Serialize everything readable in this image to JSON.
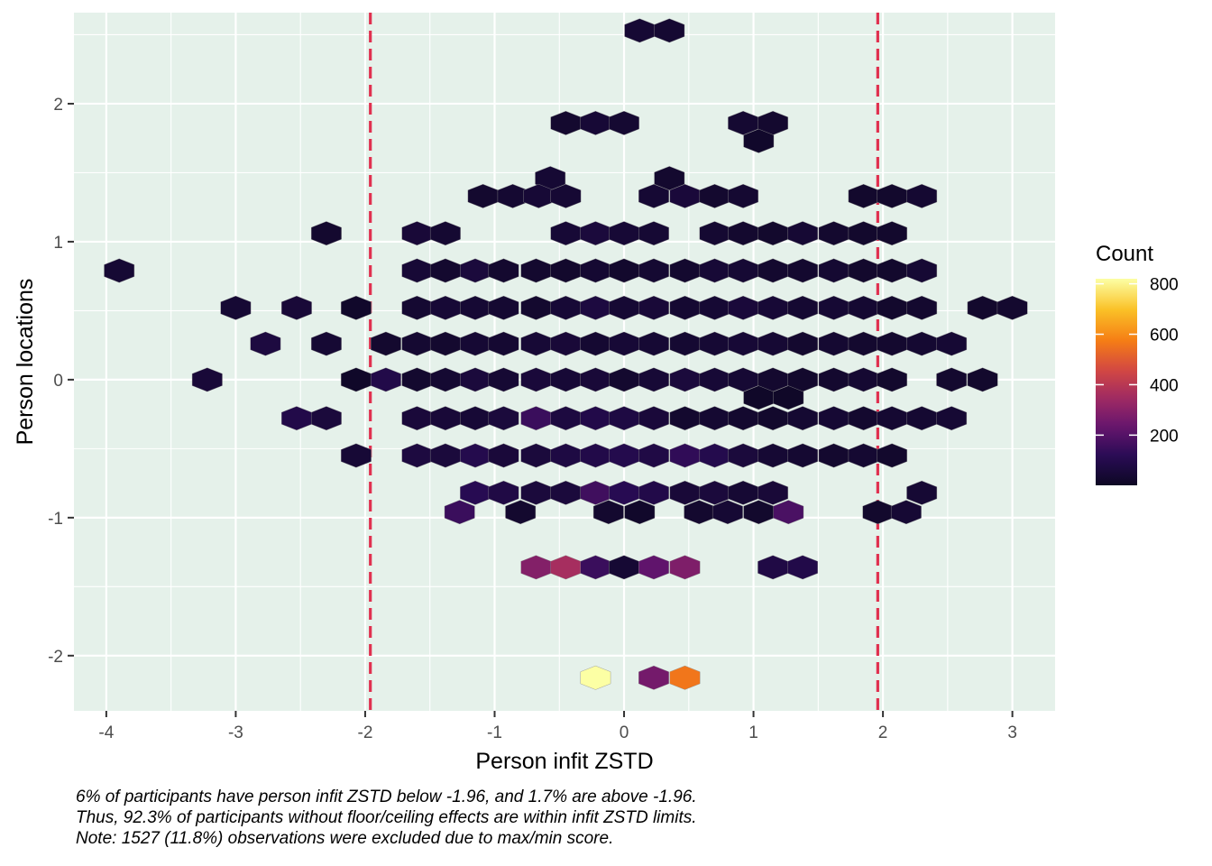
{
  "chart_data": {
    "type": "hexbin",
    "xlabel": "Person infit ZSTD",
    "ylabel": "Person locations",
    "xlim": [
      -4.25,
      3.33
    ],
    "ylim": [
      -2.4,
      2.66
    ],
    "x_ticks": [
      -4,
      -3,
      -2,
      -1,
      0,
      1,
      2,
      3
    ],
    "x_tick_labels": [
      "-4",
      "-3",
      "-2",
      "-1",
      "0",
      "1",
      "2",
      "3"
    ],
    "y_ticks": [
      -2,
      -1,
      0,
      1,
      2
    ],
    "y_tick_labels": [
      "-2",
      "-1",
      "0",
      "1",
      "2"
    ],
    "reference_lines_x": [
      -1.96,
      1.96
    ],
    "reference_line_style": "dashed",
    "reference_line_color": "#e0304f",
    "panel_background": "#e5f1ea",
    "grid": true,
    "legend": {
      "title": "Count",
      "position": "right",
      "ticks": [
        200,
        400,
        600,
        800
      ],
      "tick_labels": [
        "200",
        "400",
        "600",
        "800"
      ],
      "range": [
        1,
        820
      ]
    },
    "points": [
      {
        "x": 0.12,
        "y": 2.53,
        "count": 40
      },
      {
        "x": 0.35,
        "y": 2.53,
        "count": 35
      },
      {
        "x": -0.45,
        "y": 1.86,
        "count": 30
      },
      {
        "x": -0.22,
        "y": 1.86,
        "count": 45
      },
      {
        "x": 0.0,
        "y": 1.86,
        "count": 35
      },
      {
        "x": 0.92,
        "y": 1.86,
        "count": 35
      },
      {
        "x": 1.15,
        "y": 1.86,
        "count": 30
      },
      {
        "x": 1.04,
        "y": 1.73,
        "count": 20
      },
      {
        "x": -0.57,
        "y": 1.46,
        "count": 40
      },
      {
        "x": 0.35,
        "y": 1.46,
        "count": 30
      },
      {
        "x": -1.09,
        "y": 1.33,
        "count": 30
      },
      {
        "x": -0.86,
        "y": 1.33,
        "count": 35
      },
      {
        "x": -0.66,
        "y": 1.33,
        "count": 45
      },
      {
        "x": -0.45,
        "y": 1.33,
        "count": 40
      },
      {
        "x": 0.23,
        "y": 1.33,
        "count": 40
      },
      {
        "x": 0.47,
        "y": 1.33,
        "count": 55
      },
      {
        "x": 0.7,
        "y": 1.33,
        "count": 30
      },
      {
        "x": 0.92,
        "y": 1.33,
        "count": 35
      },
      {
        "x": 1.85,
        "y": 1.33,
        "count": 25
      },
      {
        "x": 2.07,
        "y": 1.33,
        "count": 25
      },
      {
        "x": 2.3,
        "y": 1.33,
        "count": 35
      },
      {
        "x": -2.3,
        "y": 1.06,
        "count": 30
      },
      {
        "x": -1.6,
        "y": 1.06,
        "count": 50
      },
      {
        "x": -1.38,
        "y": 1.06,
        "count": 35
      },
      {
        "x": -0.45,
        "y": 1.06,
        "count": 45
      },
      {
        "x": -0.22,
        "y": 1.06,
        "count": 60
      },
      {
        "x": 0.0,
        "y": 1.06,
        "count": 45
      },
      {
        "x": 0.23,
        "y": 1.06,
        "count": 40
      },
      {
        "x": 0.7,
        "y": 1.06,
        "count": 35
      },
      {
        "x": 0.92,
        "y": 1.06,
        "count": 30
      },
      {
        "x": 1.15,
        "y": 1.06,
        "count": 25
      },
      {
        "x": 1.38,
        "y": 1.06,
        "count": 40
      },
      {
        "x": 1.62,
        "y": 1.06,
        "count": 30
      },
      {
        "x": 1.85,
        "y": 1.06,
        "count": 25
      },
      {
        "x": 2.07,
        "y": 1.06,
        "count": 25
      },
      {
        "x": -3.9,
        "y": 0.79,
        "count": 40
      },
      {
        "x": -1.6,
        "y": 0.79,
        "count": 45
      },
      {
        "x": -1.38,
        "y": 0.79,
        "count": 30
      },
      {
        "x": -1.15,
        "y": 0.79,
        "count": 60
      },
      {
        "x": -0.93,
        "y": 0.79,
        "count": 30
      },
      {
        "x": -0.68,
        "y": 0.79,
        "count": 30
      },
      {
        "x": -0.45,
        "y": 0.79,
        "count": 25
      },
      {
        "x": -0.22,
        "y": 0.79,
        "count": 35
      },
      {
        "x": 0.0,
        "y": 0.79,
        "count": 25
      },
      {
        "x": 0.23,
        "y": 0.79,
        "count": 35
      },
      {
        "x": 0.47,
        "y": 0.79,
        "count": 30
      },
      {
        "x": 0.7,
        "y": 0.79,
        "count": 45
      },
      {
        "x": 0.92,
        "y": 0.79,
        "count": 40
      },
      {
        "x": 1.15,
        "y": 0.79,
        "count": 30
      },
      {
        "x": 1.38,
        "y": 0.79,
        "count": 30
      },
      {
        "x": 1.62,
        "y": 0.79,
        "count": 35
      },
      {
        "x": 1.85,
        "y": 0.79,
        "count": 25
      },
      {
        "x": 2.07,
        "y": 0.79,
        "count": 25
      },
      {
        "x": 2.3,
        "y": 0.79,
        "count": 40
      },
      {
        "x": -3.0,
        "y": 0.52,
        "count": 40
      },
      {
        "x": -2.53,
        "y": 0.52,
        "count": 50
      },
      {
        "x": -2.07,
        "y": 0.52,
        "count": 20
      },
      {
        "x": -1.6,
        "y": 0.52,
        "count": 35
      },
      {
        "x": -1.38,
        "y": 0.52,
        "count": 45
      },
      {
        "x": -1.15,
        "y": 0.52,
        "count": 40
      },
      {
        "x": -0.93,
        "y": 0.52,
        "count": 35
      },
      {
        "x": -0.68,
        "y": 0.52,
        "count": 30
      },
      {
        "x": -0.45,
        "y": 0.52,
        "count": 45
      },
      {
        "x": -0.22,
        "y": 0.52,
        "count": 70
      },
      {
        "x": 0.0,
        "y": 0.52,
        "count": 40
      },
      {
        "x": 0.23,
        "y": 0.52,
        "count": 50
      },
      {
        "x": 0.47,
        "y": 0.52,
        "count": 35
      },
      {
        "x": 0.7,
        "y": 0.52,
        "count": 40
      },
      {
        "x": 0.92,
        "y": 0.52,
        "count": 55
      },
      {
        "x": 1.15,
        "y": 0.52,
        "count": 45
      },
      {
        "x": 1.38,
        "y": 0.52,
        "count": 35
      },
      {
        "x": 1.62,
        "y": 0.52,
        "count": 40
      },
      {
        "x": 1.85,
        "y": 0.52,
        "count": 35
      },
      {
        "x": 2.07,
        "y": 0.52,
        "count": 25
      },
      {
        "x": 2.3,
        "y": 0.52,
        "count": 30
      },
      {
        "x": 2.77,
        "y": 0.52,
        "count": 25
      },
      {
        "x": 3.0,
        "y": 0.52,
        "count": 30
      },
      {
        "x": -2.77,
        "y": 0.26,
        "count": 70
      },
      {
        "x": -2.3,
        "y": 0.26,
        "count": 40
      },
      {
        "x": -1.84,
        "y": 0.26,
        "count": 30
      },
      {
        "x": -1.6,
        "y": 0.26,
        "count": 35
      },
      {
        "x": -1.38,
        "y": 0.26,
        "count": 30
      },
      {
        "x": -1.15,
        "y": 0.26,
        "count": 40
      },
      {
        "x": -0.93,
        "y": 0.26,
        "count": 35
      },
      {
        "x": -0.68,
        "y": 0.26,
        "count": 45
      },
      {
        "x": -0.45,
        "y": 0.26,
        "count": 50
      },
      {
        "x": -0.22,
        "y": 0.26,
        "count": 35
      },
      {
        "x": 0.0,
        "y": 0.26,
        "count": 45
      },
      {
        "x": 0.23,
        "y": 0.26,
        "count": 40
      },
      {
        "x": 0.47,
        "y": 0.26,
        "count": 35
      },
      {
        "x": 0.7,
        "y": 0.26,
        "count": 40
      },
      {
        "x": 0.92,
        "y": 0.26,
        "count": 45
      },
      {
        "x": 1.15,
        "y": 0.26,
        "count": 40
      },
      {
        "x": 1.38,
        "y": 0.26,
        "count": 30
      },
      {
        "x": 1.62,
        "y": 0.26,
        "count": 35
      },
      {
        "x": 1.85,
        "y": 0.26,
        "count": 30
      },
      {
        "x": 2.07,
        "y": 0.26,
        "count": 30
      },
      {
        "x": 2.3,
        "y": 0.26,
        "count": 35
      },
      {
        "x": 2.53,
        "y": 0.26,
        "count": 40
      },
      {
        "x": -3.22,
        "y": 0.0,
        "count": 50
      },
      {
        "x": -2.07,
        "y": 0.0,
        "count": 15
      },
      {
        "x": -1.84,
        "y": 0.0,
        "count": 90
      },
      {
        "x": -1.6,
        "y": 0.0,
        "count": 30
      },
      {
        "x": -1.38,
        "y": 0.0,
        "count": 35
      },
      {
        "x": -1.15,
        "y": 0.0,
        "count": 60
      },
      {
        "x": -0.93,
        "y": 0.0,
        "count": 40
      },
      {
        "x": -0.68,
        "y": 0.0,
        "count": 55
      },
      {
        "x": -0.45,
        "y": 0.0,
        "count": 45
      },
      {
        "x": -0.22,
        "y": 0.0,
        "count": 50
      },
      {
        "x": 0.0,
        "y": 0.0,
        "count": 30
      },
      {
        "x": 0.23,
        "y": 0.0,
        "count": 45
      },
      {
        "x": 0.47,
        "y": 0.0,
        "count": 60
      },
      {
        "x": 0.7,
        "y": 0.0,
        "count": 45
      },
      {
        "x": 0.92,
        "y": 0.0,
        "count": 40
      },
      {
        "x": 1.15,
        "y": 0.0,
        "count": 30
      },
      {
        "x": 1.38,
        "y": 0.0,
        "count": 25
      },
      {
        "x": 1.62,
        "y": 0.0,
        "count": 30
      },
      {
        "x": 1.85,
        "y": 0.0,
        "count": 35
      },
      {
        "x": 2.07,
        "y": 0.0,
        "count": 25
      },
      {
        "x": 2.53,
        "y": 0.0,
        "count": 30
      },
      {
        "x": 2.77,
        "y": 0.0,
        "count": 25
      },
      {
        "x": 1.04,
        "y": -0.13,
        "count": 15
      },
      {
        "x": 1.27,
        "y": -0.13,
        "count": 12
      },
      {
        "x": -2.53,
        "y": -0.28,
        "count": 90
      },
      {
        "x": -2.3,
        "y": -0.28,
        "count": 60
      },
      {
        "x": -1.6,
        "y": -0.28,
        "count": 55
      },
      {
        "x": -1.38,
        "y": -0.28,
        "count": 50
      },
      {
        "x": -1.15,
        "y": -0.28,
        "count": 45
      },
      {
        "x": -0.93,
        "y": -0.28,
        "count": 60
      },
      {
        "x": -0.68,
        "y": -0.28,
        "count": 150
      },
      {
        "x": -0.45,
        "y": -0.28,
        "count": 70
      },
      {
        "x": -0.22,
        "y": -0.28,
        "count": 90
      },
      {
        "x": 0.0,
        "y": -0.28,
        "count": 75
      },
      {
        "x": 0.23,
        "y": -0.28,
        "count": 55
      },
      {
        "x": 0.47,
        "y": -0.28,
        "count": 30
      },
      {
        "x": 0.7,
        "y": -0.28,
        "count": 35
      },
      {
        "x": 0.92,
        "y": -0.28,
        "count": 30
      },
      {
        "x": 1.15,
        "y": -0.28,
        "count": 25
      },
      {
        "x": 1.38,
        "y": -0.28,
        "count": 35
      },
      {
        "x": 1.62,
        "y": -0.28,
        "count": 40
      },
      {
        "x": 1.85,
        "y": -0.28,
        "count": 30
      },
      {
        "x": 2.07,
        "y": -0.28,
        "count": 35
      },
      {
        "x": 2.3,
        "y": -0.28,
        "count": 35
      },
      {
        "x": 2.53,
        "y": -0.28,
        "count": 40
      },
      {
        "x": -2.07,
        "y": -0.55,
        "count": 45
      },
      {
        "x": -1.6,
        "y": -0.55,
        "count": 70
      },
      {
        "x": -1.38,
        "y": -0.55,
        "count": 60
      },
      {
        "x": -1.15,
        "y": -0.55,
        "count": 100
      },
      {
        "x": -0.93,
        "y": -0.55,
        "count": 55
      },
      {
        "x": -0.68,
        "y": -0.55,
        "count": 60
      },
      {
        "x": -0.45,
        "y": -0.55,
        "count": 75
      },
      {
        "x": -0.22,
        "y": -0.55,
        "count": 90
      },
      {
        "x": 0.0,
        "y": -0.55,
        "count": 100
      },
      {
        "x": 0.23,
        "y": -0.55,
        "count": 80
      },
      {
        "x": 0.47,
        "y": -0.55,
        "count": 130
      },
      {
        "x": 0.7,
        "y": -0.55,
        "count": 100
      },
      {
        "x": 0.92,
        "y": -0.55,
        "count": 60
      },
      {
        "x": 1.15,
        "y": -0.55,
        "count": 40
      },
      {
        "x": 1.38,
        "y": -0.55,
        "count": 35
      },
      {
        "x": 1.62,
        "y": -0.55,
        "count": 30
      },
      {
        "x": 1.85,
        "y": -0.55,
        "count": 35
      },
      {
        "x": 2.07,
        "y": -0.55,
        "count": 25
      },
      {
        "x": -1.15,
        "y": -0.82,
        "count": 110
      },
      {
        "x": -0.93,
        "y": -0.82,
        "count": 80
      },
      {
        "x": -0.68,
        "y": -0.82,
        "count": 60
      },
      {
        "x": -0.45,
        "y": -0.82,
        "count": 60
      },
      {
        "x": -0.22,
        "y": -0.82,
        "count": 160
      },
      {
        "x": 0.0,
        "y": -0.82,
        "count": 110
      },
      {
        "x": 0.23,
        "y": -0.82,
        "count": 90
      },
      {
        "x": 0.47,
        "y": -0.82,
        "count": 50
      },
      {
        "x": 0.7,
        "y": -0.82,
        "count": 60
      },
      {
        "x": 0.92,
        "y": -0.82,
        "count": 40
      },
      {
        "x": 1.15,
        "y": -0.82,
        "count": 50
      },
      {
        "x": 2.3,
        "y": -0.82,
        "count": 40
      },
      {
        "x": -1.27,
        "y": -0.96,
        "count": 150
      },
      {
        "x": -0.8,
        "y": -0.96,
        "count": 30
      },
      {
        "x": -0.12,
        "y": -0.96,
        "count": 30
      },
      {
        "x": 0.12,
        "y": -0.96,
        "count": 20
      },
      {
        "x": 0.58,
        "y": -0.96,
        "count": 30
      },
      {
        "x": 0.8,
        "y": -0.96,
        "count": 40
      },
      {
        "x": 1.04,
        "y": -0.96,
        "count": 25
      },
      {
        "x": 1.27,
        "y": -0.96,
        "count": 180
      },
      {
        "x": 1.96,
        "y": -0.96,
        "count": 25
      },
      {
        "x": 2.18,
        "y": -0.96,
        "count": 40
      },
      {
        "x": -0.68,
        "y": -1.36,
        "count": 290
      },
      {
        "x": -0.45,
        "y": -1.36,
        "count": 360
      },
      {
        "x": -0.22,
        "y": -1.36,
        "count": 150
      },
      {
        "x": 0.0,
        "y": -1.36,
        "count": 40
      },
      {
        "x": 0.23,
        "y": -1.36,
        "count": 220
      },
      {
        "x": 0.47,
        "y": -1.36,
        "count": 280
      },
      {
        "x": 1.15,
        "y": -1.36,
        "count": 80
      },
      {
        "x": 1.38,
        "y": -1.36,
        "count": 90
      },
      {
        "x": -0.22,
        "y": -2.16,
        "count": 820
      },
      {
        "x": 0.23,
        "y": -2.16,
        "count": 260
      },
      {
        "x": 0.47,
        "y": -2.16,
        "count": 560
      }
    ]
  },
  "caption": {
    "line1": "6% of participants have person infit ZSTD below -1.96, and 1.7% are above -1.96.",
    "line2": "Thus, 92.3% of participants without floor/ceiling effects are within infit ZSTD limits.",
    "line3": "Note: 1527 (11.8%) observations were excluded due to max/min score."
  }
}
